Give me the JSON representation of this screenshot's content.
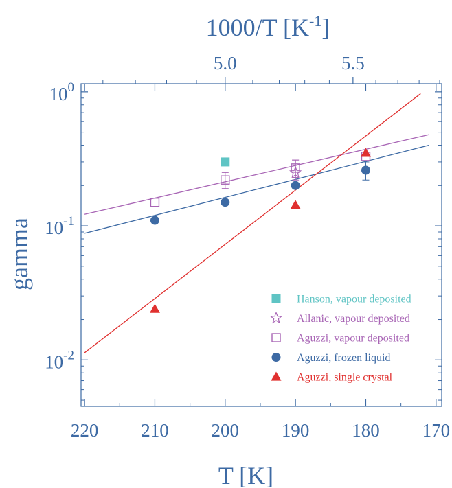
{
  "chart_data": {
    "type": "scatter",
    "title": "",
    "xlabel": "T [K]",
    "x2label": "1000/T [K",
    "x2label_sup": "-1",
    "x2label_close": "]",
    "ylabel": "gamma",
    "x_scale": "linear",
    "x_reversed": true,
    "xlim": [
      220.5,
      169.2
    ],
    "xticks": [
      220,
      210,
      200,
      190,
      180,
      170
    ],
    "xtick_labels": [
      "220",
      "210",
      "200",
      "190",
      "180",
      "170"
    ],
    "x2_scale": "reciprocal",
    "x2ticks": [
      5.0,
      5.5
    ],
    "x2tick_labels": [
      "5.0",
      "5.5"
    ],
    "y_scale": "log",
    "ylim": [
      0.0045,
      1.15
    ],
    "ytick_decades": [
      {
        "value": 0.01,
        "base": "10",
        "exp": "-2"
      },
      {
        "value": 0.1,
        "base": "10",
        "exp": "-1"
      },
      {
        "value": 1,
        "base": "10",
        "exp": "0"
      }
    ],
    "legend_position": "bottom-right",
    "grid": false,
    "axis_color": "#3d6aa4",
    "series": [
      {
        "name": "Hanson, vapour deposited",
        "marker": "filled-square",
        "color": "#5fc4c4",
        "points": [
          {
            "x": 200,
            "y": 0.3
          }
        ]
      },
      {
        "name": "Allanic, vapour deposited",
        "marker": "open-star",
        "color": "#a865b5",
        "points": [
          {
            "x": 190,
            "y": 0.25,
            "err_low": 0.22,
            "err_high": 0.31
          }
        ]
      },
      {
        "name": "Aguzzi, vapour deposited",
        "marker": "open-square",
        "color": "#a865b5",
        "points": [
          {
            "x": 210,
            "y": 0.15
          },
          {
            "x": 200,
            "y": 0.22,
            "err_low": 0.19,
            "err_high": 0.25
          },
          {
            "x": 190,
            "y": 0.27,
            "err_low": 0.23,
            "err_high": 0.31
          },
          {
            "x": 180,
            "y": 0.33
          }
        ],
        "fit": {
          "x": [
            220,
            171
          ],
          "y": [
            0.122,
            0.48
          ]
        }
      },
      {
        "name": "Aguzzi, frozen liquid",
        "marker": "filled-circle",
        "color": "#3d6aa4",
        "points": [
          {
            "x": 210,
            "y": 0.11
          },
          {
            "x": 200,
            "y": 0.15
          },
          {
            "x": 190,
            "y": 0.2
          },
          {
            "x": 180,
            "y": 0.26,
            "err_low": 0.22,
            "err_high": 0.3
          }
        ],
        "fit": {
          "x": [
            220,
            171
          ],
          "y": [
            0.088,
            0.4
          ]
        }
      },
      {
        "name": "Aguzzi, single crystal",
        "marker": "filled-triangle",
        "color": "#e0302f",
        "points": [
          {
            "x": 210,
            "y": 0.024
          },
          {
            "x": 190,
            "y": 0.143
          },
          {
            "x": 180,
            "y": 0.35
          }
        ],
        "fit": {
          "x": [
            220,
            172.2
          ],
          "y": [
            0.0113,
            0.97
          ]
        }
      }
    ]
  }
}
